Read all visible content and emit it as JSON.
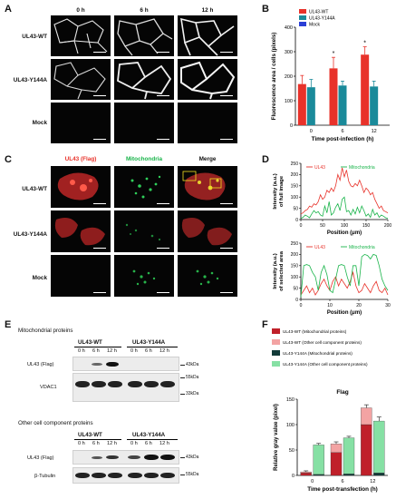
{
  "panels": {
    "A": "A",
    "B": "B",
    "C": "C",
    "D": "D",
    "E": "E",
    "F": "F"
  },
  "panelA": {
    "columns": [
      "0 h",
      "6 h",
      "12 h"
    ],
    "rows": [
      "UL43-WT",
      "UL43-Y144A",
      "Mock"
    ]
  },
  "panelC": {
    "channels": {
      "ul43": "UL43 (Flag)",
      "mito": "Mitochondria",
      "merge": "Merge"
    },
    "rows": [
      "UL43-WT",
      "UL43-Y144A",
      "Mock"
    ],
    "colors": {
      "ul43": "#e8322a",
      "mito": "#19b44a"
    }
  },
  "panelE": {
    "section1_title": "Mitochondrial proteins",
    "section2_title": "Other cell component proteins",
    "groups": [
      "UL43-WT",
      "UL43-Y144A"
    ],
    "lanes": [
      "0 h",
      "6 h",
      "12 h",
      "0 h",
      "6 h",
      "12 h"
    ],
    "blot1_labels": [
      "UL43 (Flag)",
      "VDAC1"
    ],
    "blot2_labels": [
      "UL43 (Flag)",
      "β-Tubulin"
    ],
    "mw1": [
      "43kDa",
      "55kDa",
      "33kDa"
    ],
    "mw2": [
      "43kDa",
      "55kDa"
    ]
  },
  "chart_data": [
    {
      "type": "bar",
      "panel": "B",
      "categories": [
        "0",
        "6",
        "12"
      ],
      "series": [
        {
          "name": "UL43-WT",
          "color": "#e8322a",
          "values": [
            168,
            232,
            288
          ],
          "errors": [
            35,
            45,
            32
          ]
        },
        {
          "name": "UL43-Y144A",
          "color": "#1a8a9a",
          "values": [
            155,
            162,
            158
          ],
          "errors": [
            32,
            18,
            22
          ]
        },
        {
          "name": "Mock",
          "color": "#2a3fd6",
          "values": [
            0,
            0,
            0
          ],
          "errors": [
            0,
            0,
            0
          ]
        }
      ],
      "significance": [
        "",
        "*",
        "*"
      ],
      "xlabel": "Time post-infection (h)",
      "ylabel": "Fluorescence area / cells (pixels)",
      "ylim": [
        0,
        400
      ],
      "yticks": [
        0,
        100,
        200,
        300,
        400
      ],
      "legend": "top-left"
    },
    {
      "type": "line",
      "panel": "D-top",
      "xlabel": "Position (μm)",
      "ylabel": "Intensity (a.u.) of full image",
      "xlim": [
        0,
        200
      ],
      "ylim": [
        0,
        250
      ],
      "xticks": [
        0,
        50,
        100,
        150,
        200
      ],
      "yticks": [
        0,
        50,
        100,
        150,
        200,
        250
      ],
      "series": [
        {
          "name": "UL43",
          "color": "#e8322a",
          "x": [
            0,
            5,
            10,
            15,
            20,
            25,
            30,
            35,
            40,
            45,
            50,
            55,
            60,
            65,
            70,
            75,
            80,
            85,
            90,
            95,
            100,
            105,
            110,
            115,
            120,
            125,
            130,
            135,
            140,
            145,
            150,
            155,
            160,
            165,
            170,
            175,
            180,
            185,
            190,
            195,
            200
          ],
          "y": [
            25,
            30,
            40,
            45,
            60,
            55,
            70,
            65,
            80,
            110,
            90,
            100,
            130,
            120,
            140,
            125,
            150,
            200,
            175,
            230,
            190,
            220,
            170,
            150,
            145,
            160,
            150,
            175,
            150,
            120,
            140,
            130,
            110,
            120,
            90,
            70,
            50,
            60,
            40,
            35,
            30
          ]
        },
        {
          "name": "Mitochondria",
          "color": "#19b44a",
          "x": [
            0,
            5,
            10,
            15,
            20,
            25,
            30,
            35,
            40,
            45,
            50,
            55,
            60,
            65,
            70,
            75,
            80,
            85,
            90,
            95,
            100,
            105,
            110,
            115,
            120,
            125,
            130,
            135,
            140,
            145,
            150,
            155,
            160,
            165,
            170,
            175,
            180,
            185,
            190,
            195,
            200
          ],
          "y": [
            5,
            10,
            20,
            15,
            8,
            25,
            40,
            30,
            35,
            20,
            15,
            60,
            30,
            80,
            20,
            30,
            55,
            70,
            40,
            90,
            100,
            35,
            40,
            20,
            45,
            25,
            55,
            30,
            60,
            40,
            15,
            25,
            10,
            45,
            20,
            30,
            10,
            20,
            15,
            8,
            5
          ]
        }
      ]
    },
    {
      "type": "line",
      "panel": "D-bottom",
      "xlabel": "Position (μm)",
      "ylabel": "Intensity (a.u.) of selected area",
      "xlim": [
        0,
        30
      ],
      "ylim": [
        0,
        250
      ],
      "xticks": [
        0,
        10,
        20,
        30
      ],
      "yticks": [
        0,
        50,
        100,
        150,
        200,
        250
      ],
      "series": [
        {
          "name": "UL43",
          "color": "#e8322a",
          "x": [
            0,
            1,
            2,
            3,
            4,
            5,
            6,
            7,
            8,
            9,
            10,
            11,
            12,
            13,
            14,
            15,
            16,
            17,
            18,
            19,
            20,
            21,
            22,
            23,
            24,
            25,
            26,
            27,
            28,
            29,
            30
          ],
          "y": [
            20,
            40,
            60,
            30,
            50,
            20,
            40,
            70,
            90,
            60,
            40,
            80,
            100,
            60,
            90,
            70,
            50,
            80,
            120,
            60,
            30,
            40,
            70,
            50,
            30,
            60,
            80,
            40,
            30,
            50,
            20
          ]
        },
        {
          "name": "Mitochondria",
          "color": "#19b44a",
          "x": [
            0,
            1,
            2,
            3,
            4,
            5,
            6,
            7,
            8,
            9,
            10,
            11,
            12,
            13,
            14,
            15,
            16,
            17,
            18,
            19,
            20,
            21,
            22,
            23,
            24,
            25,
            26,
            27,
            28,
            29,
            30
          ],
          "y": [
            10,
            150,
            155,
            150,
            120,
            100,
            40,
            120,
            150,
            110,
            40,
            30,
            90,
            150,
            155,
            150,
            100,
            60,
            150,
            150,
            60,
            190,
            200,
            195,
            180,
            200,
            195,
            150,
            90,
            60,
            40
          ]
        }
      ]
    },
    {
      "type": "bar",
      "panel": "F",
      "stacked": true,
      "title": "Flag",
      "categories": [
        "0",
        "6",
        "12"
      ],
      "xlabel": "Time post-transfection (h)",
      "ylabel": "Relative gray value (pixel)",
      "ylim": [
        0,
        150
      ],
      "yticks": [
        0,
        50,
        100,
        150
      ],
      "groups": [
        {
          "name": "UL43-WT",
          "segments": [
            {
              "name": "UL43-WT (Mitochondrial proteins)",
              "color": "#c0202a",
              "values": [
                5,
                45,
                100
              ]
            },
            {
              "name": "UL43-WT (Other cell component proteins)",
              "color": "#f3a3a3",
              "values": [
                2,
                17,
                33
              ]
            }
          ],
          "errors": [
            2,
            4,
            6
          ]
        },
        {
          "name": "UL43-Y144A",
          "segments": [
            {
              "name": "UL43-Y144A (Mitochondrial proteins)",
              "color": "#123a38",
              "values": [
                2,
                3,
                5
              ]
            },
            {
              "name": "UL43-Y144A (Other cell component proteins)",
              "color": "#86e0a4",
              "values": [
                58,
                71,
                102
              ]
            }
          ],
          "errors": [
            3,
            3,
            8
          ]
        }
      ],
      "legend": "top"
    }
  ]
}
